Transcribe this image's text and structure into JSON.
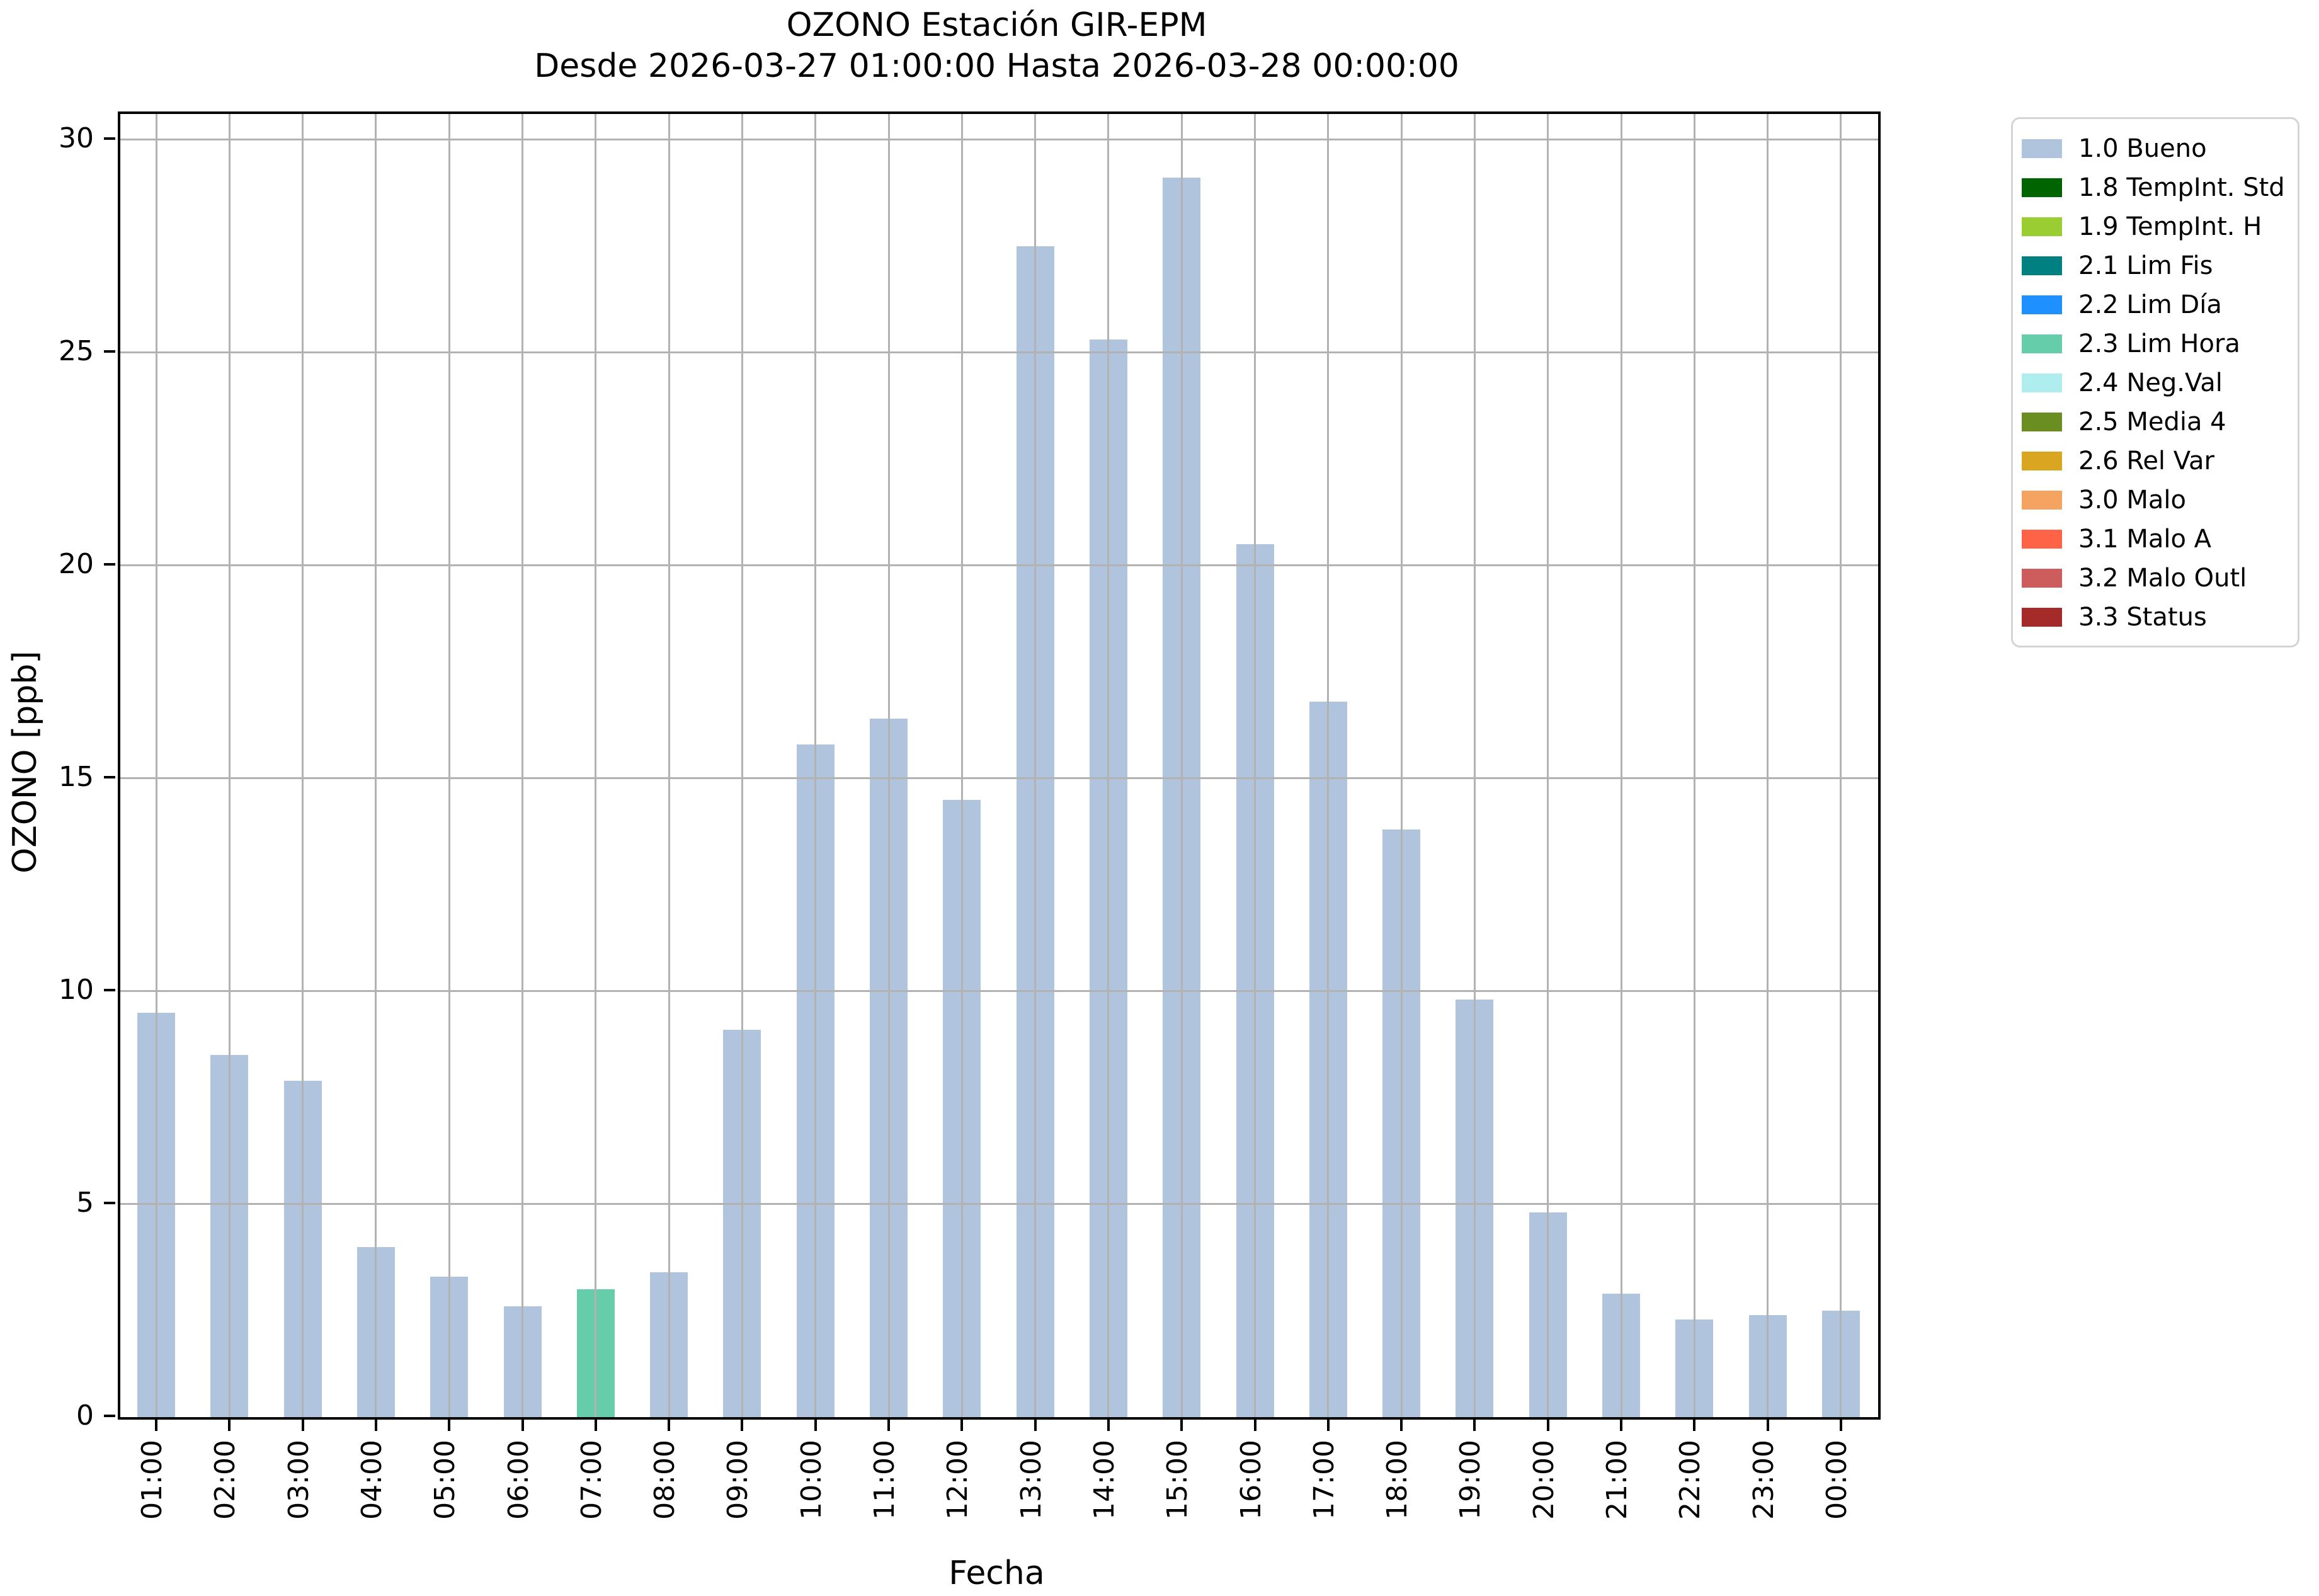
{
  "title": "OZONO Estación GIR-EPM",
  "subtitle": "Desde 2026-03-27 01:00:00 Hasta 2026-03-28 00:00:00",
  "chart_data": {
    "type": "bar",
    "title": "OZONO Estación GIR-EPM",
    "subtitle": "Desde 2026-03-27 01:00:00 Hasta 2026-03-28 00:00:00",
    "xlabel": "Fecha",
    "ylabel": "OZONO [ppb]",
    "ylim": [
      0,
      30.6
    ],
    "yticks": [
      0,
      5,
      10,
      15,
      20,
      25,
      30
    ],
    "grid": true,
    "legend_position": "outside-upper-right",
    "categories": [
      "01:00",
      "02:00",
      "03:00",
      "04:00",
      "05:00",
      "06:00",
      "07:00",
      "08:00",
      "09:00",
      "10:00",
      "11:00",
      "12:00",
      "13:00",
      "14:00",
      "15:00",
      "16:00",
      "17:00",
      "18:00",
      "19:00",
      "20:00",
      "21:00",
      "22:00",
      "23:00",
      "00:00"
    ],
    "values": [
      9.5,
      8.5,
      7.9,
      4.0,
      3.3,
      2.6,
      3.0,
      3.4,
      9.1,
      15.8,
      16.4,
      14.5,
      27.5,
      25.3,
      29.1,
      20.5,
      16.8,
      13.8,
      9.8,
      4.8,
      2.9,
      2.3,
      2.4,
      2.5
    ],
    "bar_flags": [
      "1.0 Bueno",
      "1.0 Bueno",
      "1.0 Bueno",
      "1.0 Bueno",
      "1.0 Bueno",
      "1.0 Bueno",
      "2.3 Lim Hora",
      "1.0 Bueno",
      "1.0 Bueno",
      "1.0 Bueno",
      "1.0 Bueno",
      "1.0 Bueno",
      "1.0 Bueno",
      "1.0 Bueno",
      "1.0 Bueno",
      "1.0 Bueno",
      "1.0 Bueno",
      "1.0 Bueno",
      "1.0 Bueno",
      "1.0 Bueno",
      "1.0 Bueno",
      "1.0 Bueno",
      "1.0 Bueno",
      "1.0 Bueno"
    ],
    "colors": {
      "bar_default": "#b0c4de",
      "bar_highlight": "#66cdaa",
      "grid": "#b2b2b2",
      "spine": "#000000"
    }
  },
  "legend": {
    "entries": [
      {
        "label": "1.0 Bueno",
        "color": "#b0c4de"
      },
      {
        "label": "1.8 TempInt. Std",
        "color": "#006400"
      },
      {
        "label": "1.9 TempInt. H",
        "color": "#9acd32"
      },
      {
        "label": "2.1 Lim Fis",
        "color": "#008080"
      },
      {
        "label": "2.2 Lim Día",
        "color": "#1e90ff"
      },
      {
        "label": "2.3 Lim Hora",
        "color": "#66cdaa"
      },
      {
        "label": "2.4 Neg.Val",
        "color": "#afeeee"
      },
      {
        "label": "2.5 Media 4",
        "color": "#6b8e23"
      },
      {
        "label": "2.6 Rel Var",
        "color": "#daa520"
      },
      {
        "label": "3.0 Malo",
        "color": "#f4a460"
      },
      {
        "label": "3.1 Malo A",
        "color": "#ff6347"
      },
      {
        "label": "3.2 Malo Outl",
        "color": "#cd5c5c"
      },
      {
        "label": "3.3 Status",
        "color": "#a52a2a"
      }
    ]
  }
}
